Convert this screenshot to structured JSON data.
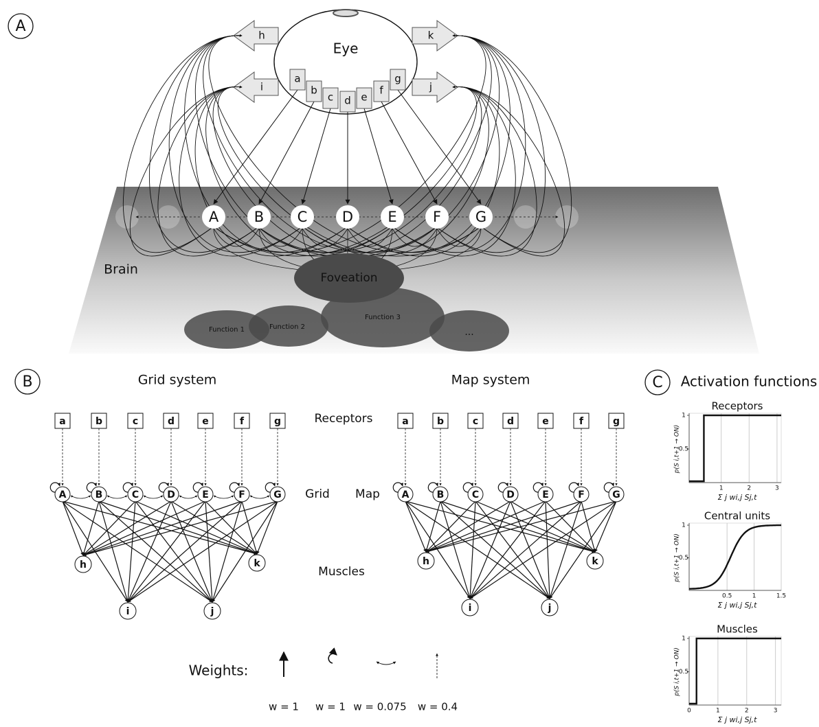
{
  "panel_a": {
    "label": "A",
    "eye": "Eye",
    "receptors": [
      "a",
      "b",
      "c",
      "d",
      "e",
      "f",
      "g"
    ],
    "nodes": [
      "A",
      "B",
      "C",
      "D",
      "E",
      "F",
      "G"
    ],
    "muscles": [
      "h",
      "i",
      "k",
      "j"
    ],
    "brain": "Brain",
    "foveation": "Foveation",
    "functions": [
      "Function 1",
      "Function 2",
      "Function 3",
      "..."
    ]
  },
  "panel_b": {
    "label": "B",
    "grid_title": "Grid system",
    "map_title": "Map system",
    "receptors_label": "Receptors",
    "grid_label": "Grid",
    "map_label": "Map",
    "muscles_label": "Muscles",
    "receptors": [
      "a",
      "b",
      "c",
      "d",
      "e",
      "f",
      "g"
    ],
    "nodes": [
      "A",
      "B",
      "C",
      "D",
      "E",
      "F",
      "G"
    ],
    "muscles": [
      "h",
      "k",
      "i",
      "j"
    ],
    "weights_label": "Weights:",
    "weights": [
      "w = 1",
      "w = 1",
      "w = 0.075",
      "w = 0.4"
    ]
  },
  "panel_c": {
    "label": "C",
    "title": "Activation functions",
    "y_label": "p(S i,t+1 → ON)",
    "x_label": "Σ j wi,j Sj,t",
    "plots": [
      {
        "title": "Receptors",
        "xlim": [
          -0.15,
          3.15
        ],
        "xticks": [
          1,
          2,
          3
        ],
        "ylim": [
          0,
          1
        ],
        "yticks": [
          0.5,
          1
        ]
      },
      {
        "title": "Central units",
        "xlim": [
          -0.2,
          1.5
        ],
        "xticks": [
          0.5,
          1,
          1.5
        ],
        "ylim": [
          0,
          1
        ],
        "yticks": [
          0.5,
          1
        ]
      },
      {
        "title": "Muscles",
        "xlim": [
          0,
          3.2
        ],
        "xticks": [
          0,
          1,
          2,
          3
        ],
        "ylim": [
          0,
          1
        ],
        "yticks": [
          0.5,
          1
        ]
      }
    ]
  }
}
